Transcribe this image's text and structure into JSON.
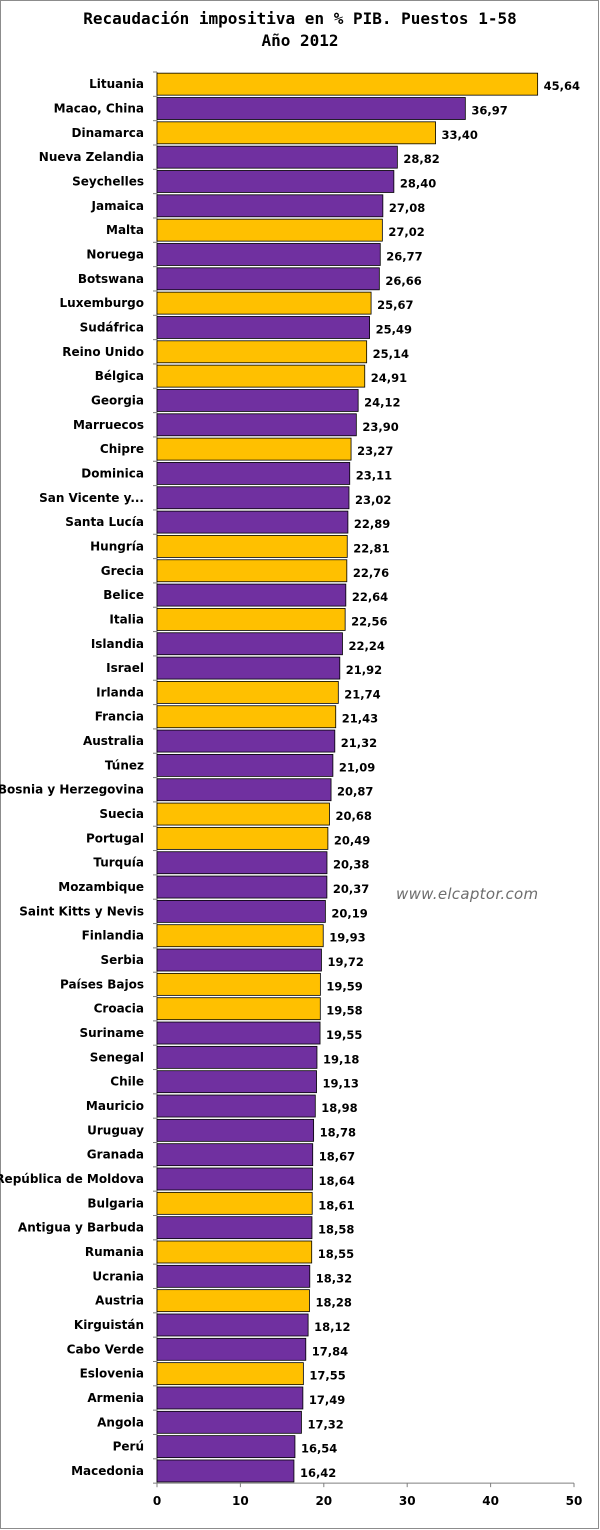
{
  "chart_data": {
    "type": "bar",
    "orientation": "horizontal",
    "title": "Recaudación impositiva en % PIB. Puestos 1-58",
    "subtitle": "Año 2012",
    "xlim": [
      0,
      50
    ],
    "x_ticks": [
      "0",
      "10",
      "20",
      "30",
      "40",
      "50"
    ],
    "grid": false,
    "colors": {
      "highlight": "#ffc000",
      "default": "#7030a0"
    },
    "categories": [
      "Lituania",
      "Macao, China",
      "Dinamarca",
      "Nueva Zelandia",
      "Seychelles",
      "Jamaica",
      "Malta",
      "Noruega",
      "Botswana",
      "Luxemburgo",
      "Sudáfrica",
      "Reino Unido",
      "Bélgica",
      "Georgia",
      "Marruecos",
      "Chipre",
      "Dominica",
      "San Vicente y...",
      "Santa Lucía",
      "Hungría",
      "Grecia",
      "Belice",
      "Italia",
      "Islandia",
      "Israel",
      "Irlanda",
      "Francia",
      "Australia",
      "Túnez",
      "Bosnia y Herzegovina",
      "Suecia",
      "Portugal",
      "Turquía",
      "Mozambique",
      "Saint Kitts y Nevis",
      "Finlandia",
      "Serbia",
      "Países Bajos",
      "Croacia",
      "Suriname",
      "Senegal",
      "Chile",
      "Mauricio",
      "Uruguay",
      "Granada",
      "República de Moldova",
      "Bulgaria",
      "Antigua y Barbuda",
      "Rumania",
      "Ucrania",
      "Austria",
      "Kirguistán",
      "Cabo Verde",
      "Eslovenia",
      "Armenia",
      "Angola",
      "Perú",
      "Macedonia"
    ],
    "values": [
      45.64,
      36.97,
      33.4,
      28.82,
      28.4,
      27.08,
      27.02,
      26.77,
      26.66,
      25.67,
      25.49,
      25.14,
      24.91,
      24.12,
      23.9,
      23.27,
      23.11,
      23.02,
      22.89,
      22.81,
      22.76,
      22.64,
      22.56,
      22.24,
      21.92,
      21.74,
      21.43,
      21.32,
      21.09,
      20.87,
      20.68,
      20.49,
      20.38,
      20.37,
      20.19,
      19.93,
      19.72,
      19.59,
      19.58,
      19.55,
      19.18,
      19.13,
      18.98,
      18.78,
      18.67,
      18.64,
      18.61,
      18.58,
      18.55,
      18.32,
      18.28,
      18.12,
      17.84,
      17.55,
      17.49,
      17.32,
      16.54,
      16.42
    ],
    "value_labels": [
      "45,64",
      "36,97",
      "33,40",
      "28,82",
      "28,40",
      "27,08",
      "27,02",
      "26,77",
      "26,66",
      "25,67",
      "25,49",
      "25,14",
      "24,91",
      "24,12",
      "23,90",
      "23,27",
      "23,11",
      "23,02",
      "22,89",
      "22,81",
      "22,76",
      "22,64",
      "22,56",
      "22,24",
      "21,92",
      "21,74",
      "21,43",
      "21,32",
      "21,09",
      "20,87",
      "20,68",
      "20,49",
      "20,38",
      "20,37",
      "20,19",
      "19,93",
      "19,72",
      "19,59",
      "19,58",
      "19,55",
      "19,18",
      "19,13",
      "18,98",
      "18,78",
      "18,67",
      "18,64",
      "18,61",
      "18,58",
      "18,55",
      "18,32",
      "18,28",
      "18,12",
      "17,84",
      "17,55",
      "17,49",
      "17,32",
      "16,54",
      "16,42"
    ],
    "highlighted": [
      true,
      false,
      true,
      false,
      false,
      false,
      true,
      false,
      false,
      true,
      false,
      true,
      true,
      false,
      false,
      true,
      false,
      false,
      false,
      true,
      true,
      false,
      true,
      false,
      false,
      true,
      true,
      false,
      false,
      false,
      true,
      true,
      false,
      false,
      false,
      true,
      false,
      true,
      true,
      false,
      false,
      false,
      false,
      false,
      false,
      false,
      true,
      false,
      true,
      false,
      true,
      false,
      false,
      true,
      false,
      false,
      false,
      false
    ]
  },
  "watermark": "www.elcaptor.com"
}
